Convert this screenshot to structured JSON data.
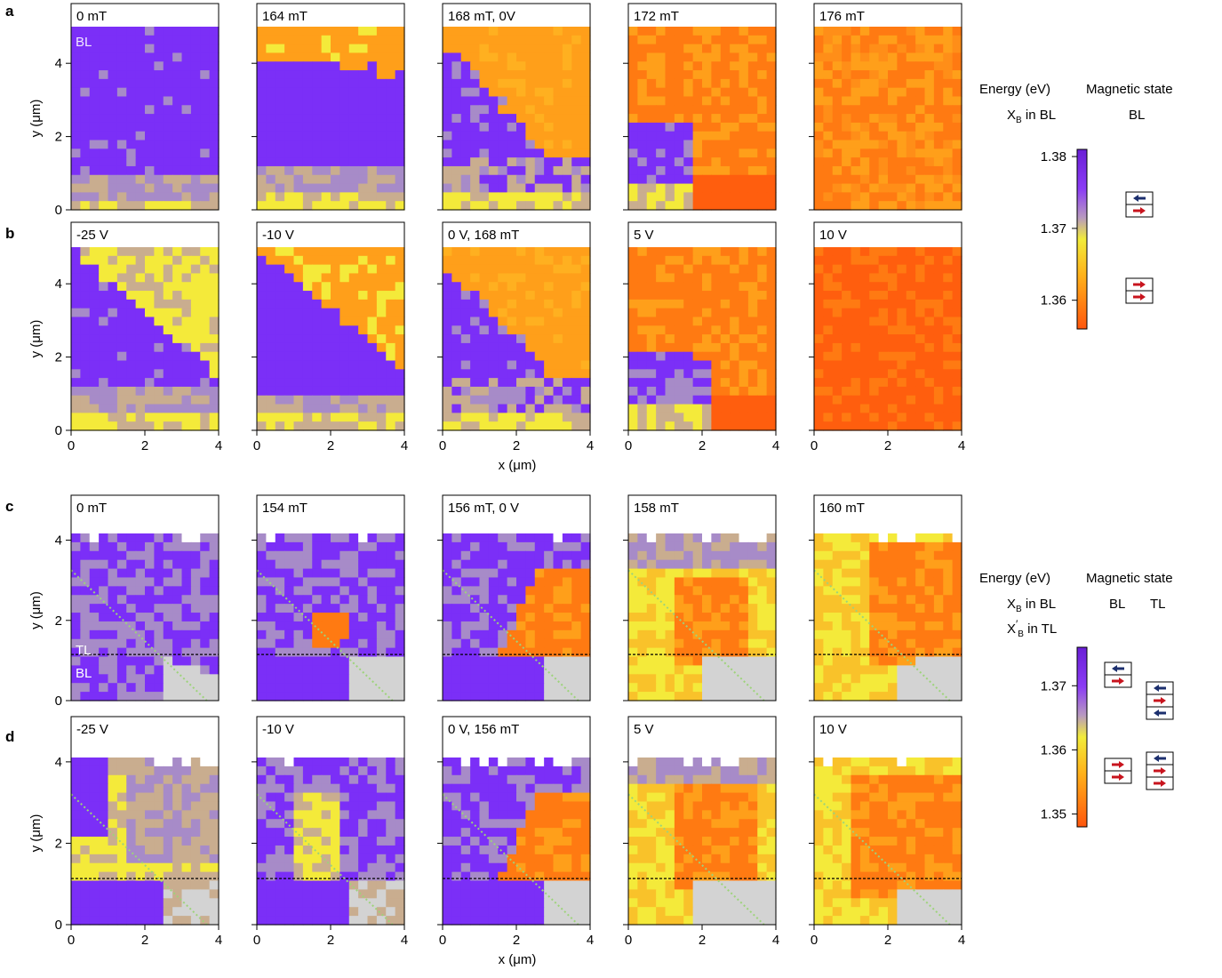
{
  "colors": {
    "purple": "#7b2ff7",
    "mauve": "#a78bc8",
    "tan": "#c9ad8f",
    "yellow": "#f4ea3a",
    "orange_light": "#ff9f1a",
    "orange": "#ff7a12",
    "orange_dark": "#ff5e0e",
    "substrate": "#d3d3d3",
    "spin_blue": "#1c2f6e",
    "spin_red": "#c8141e",
    "guide_dotted": "#9dd37a"
  },
  "axis_labels": {
    "y": "y (μm)",
    "x": "x (μm)",
    "x_ticks": [
      "0",
      "2",
      "4"
    ],
    "y_ticks": [
      "0",
      "2",
      "4"
    ]
  },
  "rows": [
    {
      "letter": "a",
      "panels": [
        {
          "label": "0 mT",
          "pattern": "a0"
        },
        {
          "label": "164 mT",
          "pattern": "a1"
        },
        {
          "label": "168 mT, 0V",
          "pattern": "a2"
        },
        {
          "label": "172 mT",
          "pattern": "a3"
        },
        {
          "label": "176 mT",
          "pattern": "a4"
        }
      ]
    },
    {
      "letter": "b",
      "panels": [
        {
          "label": "-25 V",
          "pattern": "b0"
        },
        {
          "label": "-10 V",
          "pattern": "b1"
        },
        {
          "label": "0 V, 168 mT",
          "pattern": "a2"
        },
        {
          "label": "5 V",
          "pattern": "b3"
        },
        {
          "label": "10 V",
          "pattern": "b4"
        }
      ]
    },
    {
      "letter": "c",
      "panels": [
        {
          "label": "0 mT",
          "pattern": "c0"
        },
        {
          "label": "154 mT",
          "pattern": "c1"
        },
        {
          "label": "156 mT, 0 V",
          "pattern": "c2"
        },
        {
          "label": "158 mT",
          "pattern": "c3"
        },
        {
          "label": "160 mT",
          "pattern": "c4"
        }
      ]
    },
    {
      "letter": "d",
      "panels": [
        {
          "label": "-25 V",
          "pattern": "d0"
        },
        {
          "label": "-10 V",
          "pattern": "d1"
        },
        {
          "label": "0 V, 156 mT",
          "pattern": "c2"
        },
        {
          "label": "5 V",
          "pattern": "d3"
        },
        {
          "label": "10 V",
          "pattern": "d4"
        }
      ]
    }
  ],
  "annotations": {
    "a_first": "BL",
    "c_first_top": "TL",
    "c_first_bottom": "BL"
  },
  "legend_top": {
    "energy_header": "Energy (eV)",
    "state_header": "Magnetic state",
    "row1_left": "X",
    "row1_sub": "B",
    "row1_rest": " in BL",
    "row1_right": "BL",
    "ticks": [
      "1.38",
      "1.37",
      "1.36"
    ]
  },
  "legend_bottom": {
    "energy_header": "Energy (eV)",
    "state_header": "Magnetic state",
    "row1_left": "X",
    "row1_sub": "B",
    "row1_rest": " in BL",
    "row1_mid": "BL",
    "row1_right": "TL",
    "row2_left": "X",
    "row2_prime": "′",
    "row2_sub": "B",
    "row2_rest": " in TL",
    "ticks": [
      "1.37",
      "1.36",
      "1.35"
    ]
  },
  "chart_data": {
    "type": "heatmap",
    "x_range": [
      0,
      4
    ],
    "y_range_top": [
      0,
      5
    ],
    "y_range_bottom": [
      0,
      4.5
    ],
    "colorbar_top": {
      "range": [
        1.356,
        1.381
      ],
      "ticks": [
        1.38,
        1.37,
        1.36
      ]
    },
    "colorbar_bottom": {
      "range": [
        1.348,
        1.376
      ],
      "ticks": [
        1.37,
        1.36,
        1.35
      ]
    }
  }
}
